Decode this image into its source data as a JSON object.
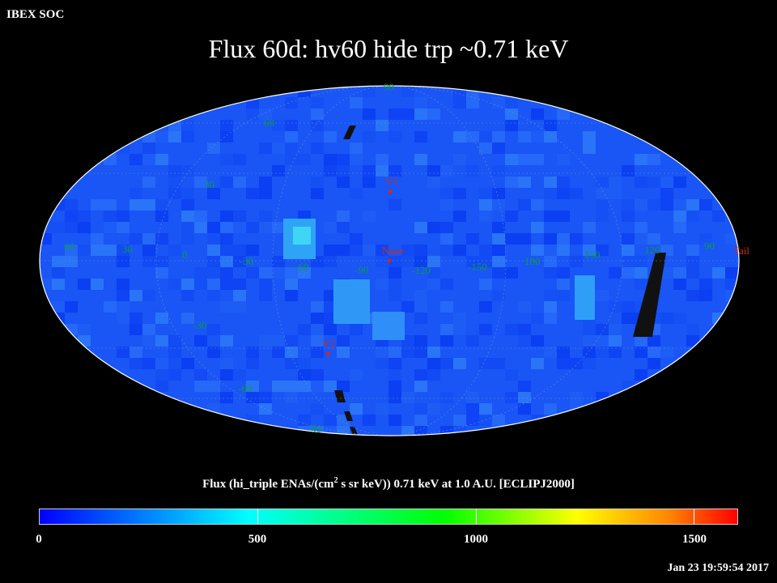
{
  "header": {
    "org": "IBEX SOC",
    "title": "Flux   60d: hv60 hide trp ~0.71 keV"
  },
  "map": {
    "projection": "Mollweide (all-sky)",
    "frame": "ECLIPJ2000",
    "latitude_labels": [
      "60",
      "30",
      "0",
      "-30",
      "-60",
      "-90"
    ],
    "longitude_labels": [
      "60",
      "30",
      "0",
      "-30",
      "-60",
      "-90",
      "-120",
      "-150",
      "180",
      "150",
      "120",
      "90"
    ],
    "top_pole_label": "90",
    "markers": [
      {
        "label": "V1",
        "color": "#d12b14"
      },
      {
        "label": "Nose",
        "color": "#d12b14"
      },
      {
        "label": "V2",
        "color": "#d12b14"
      },
      {
        "label": "Tail",
        "color": "#d12b14"
      }
    ],
    "colors": {
      "background": "#000000",
      "grid_label": "#0b9a47",
      "marker": "#d12b14",
      "base_flux": "#1a55f5"
    }
  },
  "colorbar": {
    "title_prefix": "Flux (hi_triple ENAs/(cm",
    "title_sup": "2",
    "title_suffix": " s sr keV))  0.71 keV at 1.0 A.U. [ECLIPJ2000]",
    "min": 0,
    "max": 1600,
    "ticks": [
      "0",
      "500",
      "1000",
      "1500"
    ],
    "tick_values": [
      0,
      500,
      1000,
      1500
    ]
  },
  "footer": {
    "timestamp": "Jan 23 19:59:54 2017"
  }
}
